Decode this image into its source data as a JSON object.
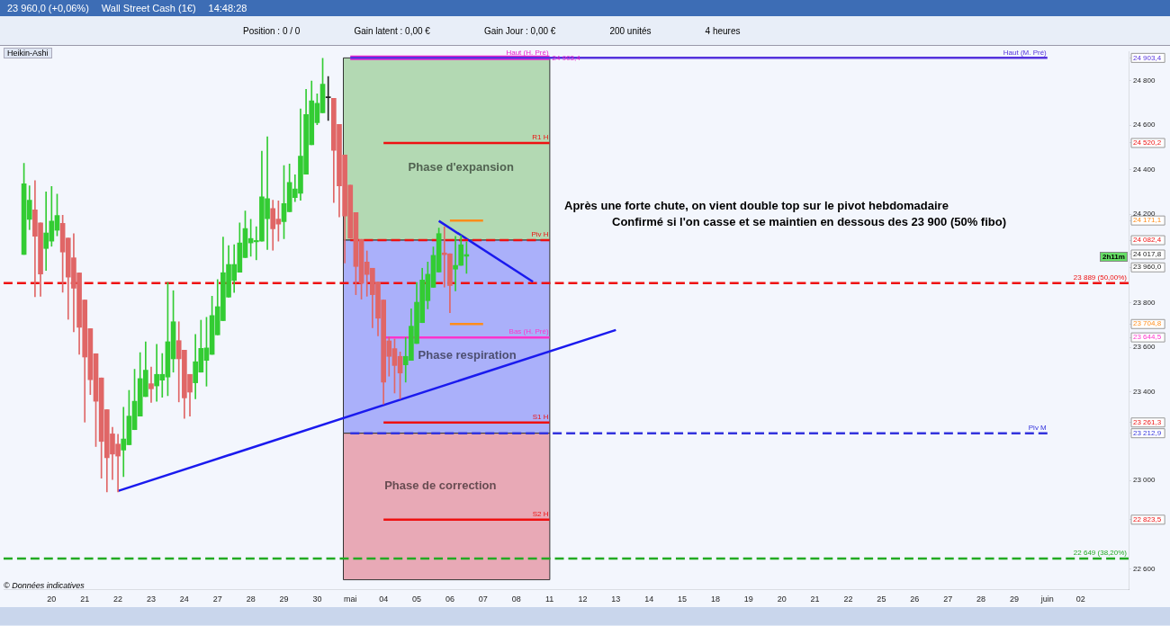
{
  "chart_data": {
    "type": "candlestick",
    "title": "Wall Street Cash (1€)",
    "subtitle": "Heikin-Ashi",
    "categories": [
      null,
      null,
      null,
      null,
      null,
      "20",
      null,
      null,
      null,
      null,
      null,
      "21",
      null,
      null,
      null,
      null,
      null,
      "22",
      null,
      null,
      null,
      null,
      null,
      "23",
      null,
      null,
      null,
      null,
      null,
      "24",
      null,
      null,
      null,
      null,
      null,
      "27",
      null,
      null,
      null,
      null,
      null,
      "28",
      null,
      null,
      null,
      null,
      null,
      "29",
      null,
      null,
      null,
      null,
      null,
      "30",
      null,
      null,
      null,
      null,
      null,
      "mai",
      null,
      null,
      null,
      null,
      null,
      "04",
      null,
      null,
      null,
      null,
      null,
      "05",
      null,
      null,
      null,
      null,
      null,
      "06",
      null,
      null,
      null,
      null,
      null,
      "07",
      null,
      null,
      null,
      null,
      null,
      "08",
      null,
      null,
      null,
      null,
      null,
      "11",
      null,
      null,
      null,
      null,
      null,
      "12",
      null,
      null,
      null,
      null,
      null,
      "13",
      null,
      null,
      null,
      null,
      null,
      "14",
      null,
      null,
      null,
      null,
      null,
      "15",
      null,
      null,
      null,
      null,
      null,
      "18",
      null,
      null,
      null,
      null,
      null,
      "19",
      null,
      null,
      null,
      null,
      null,
      "20",
      null,
      null,
      null,
      null,
      null,
      "21",
      null,
      null,
      null,
      null,
      null,
      "22",
      null,
      null,
      null,
      null,
      null,
      "25",
      null,
      null,
      null,
      null,
      null,
      "26",
      null,
      null,
      null,
      null,
      null,
      "27",
      null,
      null,
      null,
      null,
      null,
      "28",
      null,
      null,
      null,
      null,
      null,
      "29",
      null,
      null,
      null,
      null,
      null,
      "juin",
      null,
      null,
      null,
      null,
      null,
      "02",
      null,
      null,
      null,
      null,
      null
    ],
    "ohlc": [
      [
        24018,
        24429,
        24018,
        24336
      ],
      [
        24176,
        24327,
        24130,
        24263
      ],
      [
        24219,
        24351,
        23828,
        24100
      ],
      [
        24160,
        24160,
        23830,
        23930
      ],
      [
        24045,
        24300,
        23946,
        24115
      ],
      [
        24078,
        24324,
        24055,
        24168
      ],
      [
        24127,
        24290,
        24102,
        24194
      ],
      [
        24158,
        24195,
        23848,
        24029
      ],
      [
        24092,
        24092,
        23726,
        23916
      ],
      [
        24003,
        24112,
        23670,
        23866
      ],
      [
        23935,
        23935,
        23568,
        23690
      ],
      [
        23813,
        23813,
        23263,
        23556
      ],
      [
        23684,
        23684,
        23387,
        23454
      ],
      [
        23571,
        23571,
        23153,
        23357
      ],
      [
        23462,
        23462,
        23010,
        23176
      ],
      [
        23319,
        23319,
        22949,
        23103
      ],
      [
        23210,
        23240,
        23004,
        23119
      ],
      [
        23164,
        23208,
        22949,
        23110
      ],
      [
        23137,
        23330,
        23017,
        23187
      ],
      [
        23161,
        23406,
        23161,
        23290
      ],
      [
        23229,
        23501,
        23229,
        23357
      ],
      [
        23290,
        23576,
        23290,
        23459
      ],
      [
        23378,
        23624,
        23378,
        23497
      ],
      [
        23436,
        23511,
        23352,
        23413
      ],
      [
        23426,
        23613,
        23357,
        23478
      ],
      [
        23452,
        23572,
        23375,
        23478
      ],
      [
        23466,
        23892,
        23382,
        23625
      ],
      [
        23548,
        23855,
        23488,
        23715
      ],
      [
        23630,
        23715,
        23354,
        23548
      ],
      [
        23587,
        23587,
        23280,
        23372
      ],
      [
        23478,
        23478,
        23290,
        23398
      ],
      [
        23440,
        23658,
        23368,
        23535
      ],
      [
        23488,
        23722,
        23488,
        23595
      ],
      [
        23541,
        23735,
        23425,
        23597
      ],
      [
        23568,
        23830,
        23568,
        23743
      ],
      [
        23656,
        23905,
        23656,
        23783
      ],
      [
        23720,
        24096,
        23720,
        23936
      ],
      [
        23826,
        24058,
        23826,
        23973
      ],
      [
        23901,
        24062,
        23847,
        23973
      ],
      [
        23938,
        24160,
        23938,
        24070
      ],
      [
        24004,
        24214,
        24004,
        24135
      ],
      [
        24070,
        24176,
        24010,
        24090
      ],
      [
        24075,
        24143,
        23994,
        24081
      ],
      [
        24078,
        24483,
        24078,
        24278
      ],
      [
        24179,
        24548,
        24040,
        24270
      ],
      [
        24225,
        24263,
        24037,
        24134
      ],
      [
        24177,
        24259,
        24078,
        24155
      ],
      [
        24166,
        24418,
        24089,
        24247
      ],
      [
        24210,
        24426,
        24210,
        24343
      ],
      [
        24274,
        24377,
        24256,
        24313
      ],
      [
        24294,
        24674,
        24262,
        24461
      ],
      [
        24380,
        24762,
        24380,
        24648
      ],
      [
        24512,
        24799,
        24512,
        24710
      ],
      [
        24612,
        24742,
        24602,
        24699
      ],
      [
        24656,
        24902,
        24656,
        24785
      ],
      [
        24724,
        24820,
        24622,
        24724
      ],
      [
        24721,
        24721,
        24252,
        24487
      ],
      [
        24604,
        24604,
        24187,
        24327
      ],
      [
        24466,
        24466,
        23980,
        24191
      ],
      [
        24330,
        24330,
        24091,
        24091
      ],
      [
        24207,
        24207,
        23837,
        23964
      ],
      [
        24086,
        24086,
        23817,
        23888
      ],
      [
        23984,
        24034,
        23830,
        23928
      ],
      [
        23956,
        23956,
        23688,
        23837
      ],
      [
        23894,
        23894,
        23651,
        23731
      ],
      [
        23813,
        23813,
        23345,
        23443
      ],
      [
        23629,
        23647,
        23470,
        23559
      ],
      [
        23594,
        23637,
        23394,
        23518
      ],
      [
        23559,
        23579,
        23368,
        23484
      ],
      [
        23521,
        23644,
        23443,
        23559
      ],
      [
        23541,
        23773,
        23541,
        23695
      ],
      [
        23617,
        23892,
        23617,
        23803
      ],
      [
        23711,
        23956,
        23711,
        23903
      ],
      [
        23810,
        23984,
        23773,
        23929
      ],
      [
        23870,
        24052,
        23870,
        24014
      ],
      [
        23939,
        24137,
        23939,
        24112
      ],
      [
        24025,
        24143,
        23871,
        24017
      ],
      [
        24021,
        24021,
        23756,
        23878
      ],
      [
        23952,
        24099,
        23854,
        23969
      ],
      [
        23969,
        24103,
        23969,
        24062
      ],
      [
        24010,
        24075,
        23933,
        24017.8
      ],
      null,
      null,
      null,
      null,
      null,
      null,
      null,
      null,
      null,
      null,
      null,
      null,
      null,
      null,
      null,
      null,
      null,
      null,
      null,
      null,
      null,
      null,
      null,
      null,
      null,
      null,
      null,
      null,
      null,
      null,
      null,
      null,
      null,
      null,
      null,
      null,
      null,
      null,
      null,
      null,
      null,
      null,
      null,
      null,
      null,
      null,
      null,
      null,
      null,
      null,
      null,
      null,
      null,
      null,
      null,
      null,
      null,
      null,
      null,
      null,
      null,
      null,
      null,
      null,
      null,
      null,
      null,
      null,
      null,
      null,
      null,
      null,
      null,
      null,
      null,
      null,
      null,
      null,
      null,
      null,
      null,
      null,
      null,
      null,
      null,
      null,
      null,
      null,
      null,
      null,
      null,
      null,
      null,
      null,
      null,
      null,
      null,
      null,
      null,
      null,
      null,
      null,
      null,
      null,
      null,
      null,
      null,
      null,
      null,
      null,
      null,
      null,
      null,
      null,
      null,
      null
    ],
    "colors": [
      "#33cc33",
      "#33cc33",
      "#e06666",
      "#e06666",
      "#33cc33",
      "#33cc33",
      "#33cc33",
      "#e06666",
      "#e06666",
      "#e06666",
      "#e06666",
      "#e06666",
      "#e06666",
      "#e06666",
      "#e06666",
      "#e06666",
      "#e06666",
      "#e06666",
      "#33cc33",
      "#33cc33",
      "#33cc33",
      "#33cc33",
      "#33cc33",
      "#e06666",
      "#33cc33",
      "#33cc33",
      "#33cc33",
      "#33cc33",
      "#e06666",
      "#e06666",
      "#e06666",
      "#33cc33",
      "#33cc33",
      "#33cc33",
      "#33cc33",
      "#33cc33",
      "#33cc33",
      "#33cc33",
      "#33cc33",
      "#33cc33",
      "#33cc33",
      "#33cc33",
      "#33cc33",
      "#33cc33",
      "#33cc33",
      "#e06666",
      "#e06666",
      "#33cc33",
      "#33cc33",
      "#33cc33",
      "#33cc33",
      "#33cc33",
      "#33cc33",
      "#33cc33",
      "#33cc33",
      "#222222",
      "#e06666",
      "#e06666",
      "#e06666",
      "#e06666",
      "#e06666",
      "#e06666",
      "#e06666",
      "#e06666",
      "#e06666",
      "#e06666",
      "#e06666",
      "#e06666",
      "#e06666",
      "#33cc33",
      "#33cc33",
      "#33cc33",
      "#33cc33",
      "#33cc33",
      "#33cc33",
      "#33cc33",
      "#e06666",
      "#e06666",
      "#33cc33",
      "#33cc33",
      "#33cc33",
      null,
      null,
      null,
      null,
      null,
      null,
      null,
      null,
      null,
      null,
      null,
      null,
      null,
      null,
      null,
      null,
      null,
      null,
      null,
      null,
      null,
      null,
      null,
      null,
      null,
      null,
      null,
      null,
      null,
      null,
      null,
      null,
      null,
      null,
      null,
      null,
      null,
      null,
      null,
      null,
      null,
      null,
      null,
      null,
      null,
      null,
      null,
      null,
      null,
      null,
      null,
      null,
      null,
      null,
      null,
      null,
      null,
      null,
      null,
      null,
      null,
      null,
      null,
      null,
      null,
      null,
      null,
      null,
      null,
      null,
      null,
      null,
      null,
      null,
      null,
      null,
      null,
      null,
      null,
      null,
      null,
      null,
      null,
      null,
      null,
      null,
      null,
      null,
      null,
      null,
      null,
      null,
      null,
      null,
      null,
      null,
      null,
      null,
      null,
      null,
      null,
      null,
      null,
      null,
      null,
      null,
      null,
      null,
      null,
      null,
      null,
      null,
      null,
      null,
      null,
      null
    ],
    "series": [
      {
        "type": "line",
        "name": "Haut (M. Pré)",
        "color": "#5533dd",
        "x": [
          "mai",
          "juin"
        ],
        "values": [
          24903.4,
          24903.4
        ]
      },
      {
        "type": "line",
        "name": "Haut (H. Pré)",
        "color": "#ee22cc",
        "x": [
          "mai",
          "11"
        ],
        "values": [
          24903.4,
          24903.4
        ],
        "value_labels": [
          null,
          "24 903,4"
        ]
      },
      {
        "type": "line",
        "name": "R1 H",
        "color": "#ee1111",
        "x": [
          "04",
          "11"
        ],
        "values": [
          24520.2,
          24520.2
        ]
      },
      {
        "type": "line",
        "color": "#ff8c1a",
        "x": [
          "06",
          "07"
        ],
        "values": [
          24171.1,
          24171.1
        ]
      },
      {
        "type": "line",
        "name": "Piv H",
        "color": "#ee1111",
        "line_style": "dashed",
        "x": [
          "mai",
          "11"
        ],
        "values": [
          24082.4,
          24082.4
        ]
      },
      {
        "type": "line",
        "color": "#ff8c1a",
        "x": [
          "06",
          "07"
        ],
        "values": [
          23704.8,
          23704.8
        ]
      },
      {
        "type": "line",
        "name": "Bas (H. Pré)",
        "color": "#ff33cc",
        "x": [
          "04",
          "11"
        ],
        "values": [
          23644.5,
          23644.5
        ]
      },
      {
        "type": "line",
        "name": "S1 H",
        "color": "#ee1111",
        "x": [
          "04",
          "11"
        ],
        "values": [
          23261.3,
          23261.3
        ]
      },
      {
        "type": "line",
        "name": "Piv M",
        "color": "#3333dd",
        "line_style": "dashed",
        "x": [
          "mai",
          "juin"
        ],
        "values": [
          23212.9,
          23212.9
        ]
      },
      {
        "type": "line",
        "name": "S2 H",
        "color": "#ee1111",
        "x": [
          "04",
          "11"
        ],
        "values": [
          22823.5,
          22823.5
        ]
      },
      {
        "type": "line",
        "color": "#1a1aee",
        "x": [
          "22",
          "13"
        ],
        "values": [
          22953,
          23678
        ]
      },
      {
        "type": "line",
        "color": "#1a1aee",
        "values": [
          null,
          null,
          null,
          null,
          null,
          null,
          null,
          null,
          null,
          null,
          null,
          null,
          null,
          null,
          null,
          null,
          null,
          null,
          null,
          null,
          null,
          null,
          null,
          null,
          null,
          null,
          null,
          null,
          null,
          null,
          null,
          null,
          null,
          null,
          null,
          null,
          null,
          null,
          null,
          null,
          null,
          null,
          null,
          null,
          null,
          null,
          null,
          null,
          null,
          null,
          null,
          null,
          null,
          null,
          null,
          null,
          null,
          null,
          null,
          null,
          null,
          null,
          null,
          null,
          null,
          null,
          null,
          null,
          null,
          null,
          null,
          null,
          null,
          null,
          null,
          24169,
          null,
          null,
          null,
          null,
          null,
          null,
          null,
          null,
          null,
          null,
          null,
          null,
          null,
          null,
          null,
          null,
          23895,
          null,
          null,
          null,
          null,
          null,
          null,
          null,
          null,
          null,
          null,
          null,
          null,
          null,
          null,
          null,
          null,
          null,
          null,
          null,
          null,
          null,
          null,
          null,
          null,
          null,
          null,
          null,
          null,
          null,
          null,
          null,
          null,
          null,
          null,
          null,
          null,
          null,
          null,
          null,
          null,
          null,
          null,
          null,
          null,
          null,
          null,
          null,
          null,
          null,
          null,
          null,
          null,
          null,
          null,
          null,
          null,
          null,
          null,
          null,
          null,
          null,
          null,
          null,
          null,
          null,
          null,
          null,
          null,
          null,
          null,
          null,
          null,
          null,
          null,
          null,
          null,
          null,
          null,
          null,
          null,
          null,
          null,
          null,
          null,
          null,
          null,
          null,
          null,
          null,
          null,
          null,
          null,
          null,
          null,
          null,
          null,
          null,
          null,
          null,
          null,
          null,
          null,
          null,
          null
        ]
      }
    ],
    "ref_lines": [
      {
        "axis": "y",
        "value": 23889,
        "label": "23 889 (50,00%)",
        "color": "#ee1111",
        "line_style": "dashed"
      },
      {
        "axis": "y",
        "value": 22649,
        "label": "22 649 (38,20%)",
        "color": "#22aa22",
        "line_style": "dashed"
      }
    ],
    "bands": [
      {
        "axis": "y",
        "from": 24082.4,
        "to": 24903.4,
        "label": "Phase d'expansion",
        "color": "#b3d9b3"
      },
      {
        "axis": "y",
        "from": 23212.9,
        "to": 24082.4,
        "label": "Phase respiration",
        "color": "#aab0fa"
      },
      {
        "axis": "y",
        "from": 22553,
        "to": 23212.9,
        "label": "Phase de correction",
        "color": "#e8a9b6"
      }
    ],
    "annotations": [
      "Après une forte chute, on vient double top sur le pivot hebdomadaire",
      "Confirmé si l'on casse et se maintien en dessous des 23 900 (50% fibo)",
      "2h11m",
      "© Données indicatives",
      "23 960,0 (+0,06%)",
      "14:48:28",
      "Position : 0 / 0",
      "Gain latent : 0,00 €",
      "Gain Jour : 0,00 €",
      "200 unités",
      "4 heures"
    ],
    "ylim": [
      22510,
      24930
    ],
    "yticks": [
      {
        "value": 22600,
        "label": "22 600"
      },
      {
        "value": 22823.5,
        "label": "22 823,5"
      },
      {
        "value": 23000,
        "label": "23 000"
      },
      {
        "value": 23212.9,
        "label": "23 212,9"
      },
      {
        "value": 23261.3,
        "label": "23 261,3"
      },
      {
        "value": 23400,
        "label": "23 400"
      },
      {
        "value": 23600,
        "label": "23 600"
      },
      {
        "value": 23644.5,
        "label": "23 644,5"
      },
      {
        "value": 23704.8,
        "label": "23 704,8"
      },
      {
        "value": 23800,
        "label": "23 800"
      },
      {
        "value": 23960,
        "label": "23 960,0"
      },
      {
        "value": 24017.8,
        "label": "24 017,8"
      },
      {
        "value": 24082.4,
        "label": "24 082,4"
      },
      {
        "value": 24171.1,
        "label": "24 171,1"
      },
      {
        "value": 24200,
        "label": "24 200"
      },
      {
        "value": 24400,
        "label": "24 400"
      },
      {
        "value": 24520.2,
        "label": "24 520,2"
      },
      {
        "value": 24600,
        "label": "24 600"
      },
      {
        "value": 24800,
        "label": "24 800"
      },
      {
        "value": 24903.4,
        "label": "24 903,4"
      }
    ],
    "grid": false,
    "legend": false,
    "marker": "none"
  }
}
